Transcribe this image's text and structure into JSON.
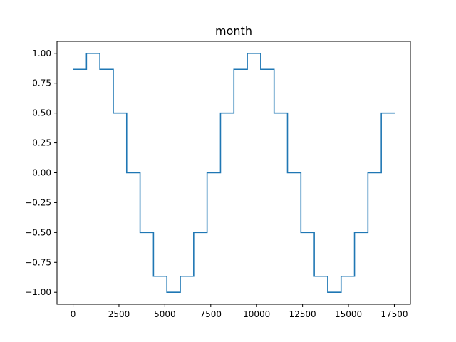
{
  "chart_data": {
    "type": "line",
    "step": "post",
    "title": "month",
    "xlabel": "",
    "ylabel": "",
    "xlim": [
      -875,
      18375
    ],
    "ylim": [
      -1.1,
      1.1
    ],
    "grid": false,
    "legend": "none",
    "xticks": [
      0,
      2500,
      5000,
      7500,
      10000,
      12500,
      15000,
      17500
    ],
    "xtick_labels": [
      "0",
      "2500",
      "5000",
      "7500",
      "10000",
      "12500",
      "15000",
      "17500"
    ],
    "yticks": [
      1.0,
      0.75,
      0.5,
      0.25,
      0.0,
      -0.25,
      -0.5,
      -0.75,
      -1.0
    ],
    "ytick_labels": [
      "1.00",
      "0.75",
      "0.50",
      "0.25",
      "0.00",
      "−0.25",
      "−0.50",
      "−0.75",
      "−1.00"
    ],
    "series": [
      {
        "color": "#1f77b4",
        "x": [
          0,
          730,
          1460,
          2190,
          2920,
          3650,
          4380,
          5110,
          5840,
          6570,
          7300,
          8030,
          8760,
          9490,
          10220,
          10950,
          11680,
          12410,
          13140,
          13870,
          14600,
          15330,
          16060,
          16790,
          17520
        ],
        "y": [
          0.866,
          1.0,
          0.866,
          0.5,
          0.0,
          -0.5,
          -0.866,
          -1.0,
          -0.866,
          -0.5,
          0.0,
          0.5,
          0.866,
          1.0,
          0.866,
          0.5,
          0.0,
          -0.5,
          -0.866,
          -1.0,
          -0.866,
          -0.5,
          0.0,
          0.5,
          0.5
        ]
      }
    ]
  }
}
